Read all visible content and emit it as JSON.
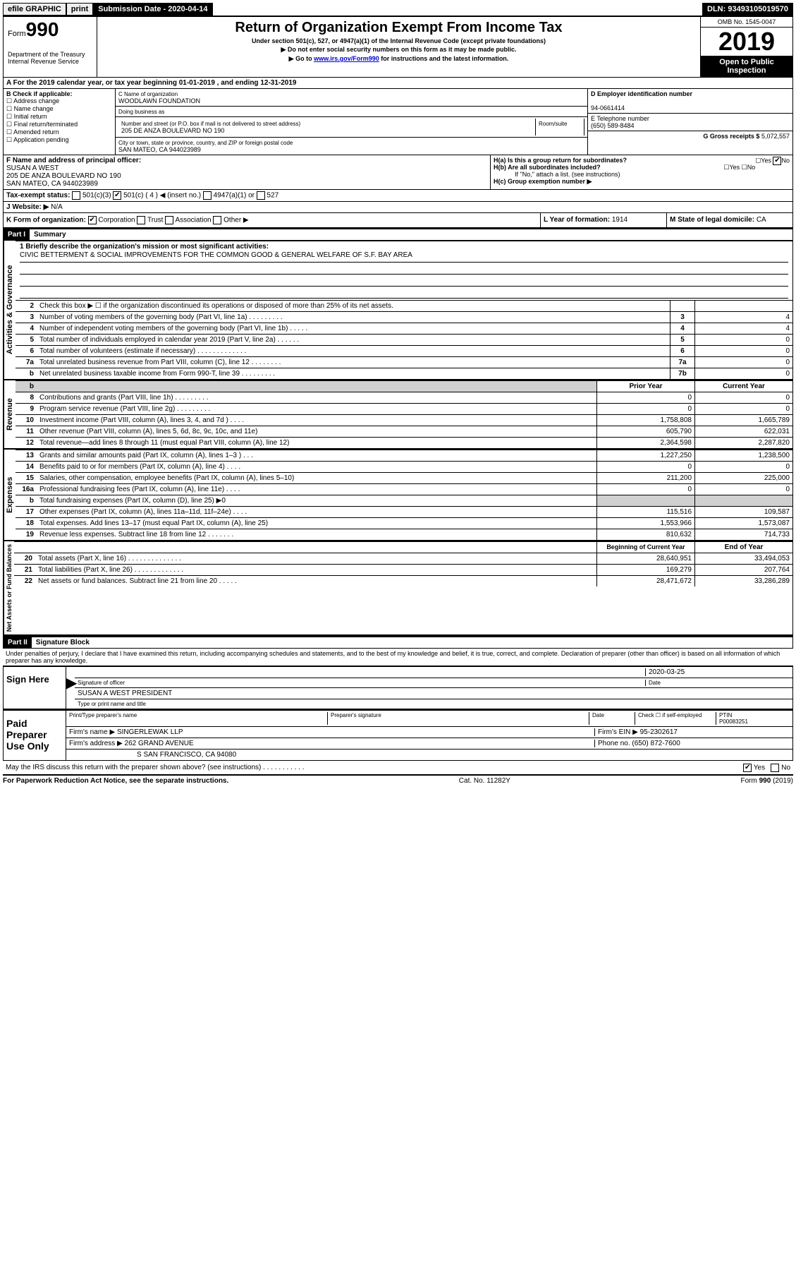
{
  "topbar": {
    "efile": "efile GRAPHIC",
    "print": "print",
    "submission_label": "Submission Date - 2020-04-14",
    "dln": "DLN: 93493105019570"
  },
  "header": {
    "form_prefix": "Form",
    "form_number": "990",
    "dept": "Department of the Treasury\nInternal Revenue Service",
    "title": "Return of Organization Exempt From Income Tax",
    "sub1": "Under section 501(c), 527, or 4947(a)(1) of the Internal Revenue Code (except private foundations)",
    "sub2": "▶ Do not enter social security numbers on this form as it may be made public.",
    "sub3_prefix": "▶ Go to ",
    "sub3_link": "www.irs.gov/Form990",
    "sub3_suffix": " for instructions and the latest information.",
    "omb": "OMB No. 1545-0047",
    "year": "2019",
    "open_public": "Open to Public Inspection"
  },
  "taxyear": "A For the 2019 calendar year, or tax year beginning 01-01-2019   , and ending 12-31-2019",
  "block_b": {
    "label": "B Check if applicable:",
    "items": [
      "Address change",
      "Name change",
      "Initial return",
      "Final return/terminated",
      "Amended return",
      "Application pending"
    ]
  },
  "block_c": {
    "name_label": "C Name of organization",
    "name": "WOODLAWN FOUNDATION",
    "dba_label": "Doing business as",
    "addr_label": "Number and street (or P.O. box if mail is not delivered to street address)",
    "room_label": "Room/suite",
    "addr": "205 DE ANZA BOULEVARD NO 190",
    "city_label": "City or town, state or province, country, and ZIP or foreign postal code",
    "city": "SAN MATEO, CA  944023989"
  },
  "block_d": {
    "label": "D Employer identification number",
    "value": "94-0661414"
  },
  "block_e": {
    "label": "E Telephone number",
    "value": "(650) 589-8484"
  },
  "block_g": {
    "label": "G Gross receipts $",
    "value": "5,072,557"
  },
  "block_f": {
    "label": "F Name and address of principal officer:",
    "name": "SUSAN A WEST",
    "addr1": "205 DE ANZA BOULEVARD NO 190",
    "addr2": "SAN MATEO, CA  944023989"
  },
  "block_h": {
    "a": "H(a)  Is this a group return for subordinates?",
    "b": "H(b)  Are all subordinates included?",
    "b_note": "If \"No,\" attach a list. (see instructions)",
    "c": "H(c)  Group exemption number ▶"
  },
  "taxexempt": {
    "label": "Tax-exempt status:",
    "opts": [
      "501(c)(3)",
      "501(c) ( 4 ) ◀ (insert no.)",
      "4947(a)(1) or",
      "527"
    ]
  },
  "website": {
    "label": "J   Website: ▶",
    "value": "N/A"
  },
  "block_k": "K Form of organization:",
  "k_opts": [
    "Corporation",
    "Trust",
    "Association",
    "Other ▶"
  ],
  "block_l": {
    "label": "L Year of formation:",
    "value": "1914"
  },
  "block_m": {
    "label": "M State of legal domicile:",
    "value": "CA"
  },
  "part1": {
    "header": "Part I",
    "title": "Summary"
  },
  "mission": {
    "label": "1  Briefly describe the organization's mission or most significant activities:",
    "text": "CIVIC BETTERMENT & SOCIAL IMPROVEMENTS FOR THE COMMON GOOD & GENERAL WELFARE OF S.F. BAY AREA"
  },
  "governance": [
    {
      "n": "2",
      "t": "Check this box ▶ ☐  if the organization discontinued its operations or disposed of more than 25% of its net assets.",
      "r": "",
      "v": ""
    },
    {
      "n": "3",
      "t": "Number of voting members of the governing body (Part VI, line 1a)   .    .    .    .    .    .    .    .    .",
      "r": "3",
      "v": "4"
    },
    {
      "n": "4",
      "t": "Number of independent voting members of the governing body (Part VI, line 1b)   .    .    .    .    .",
      "r": "4",
      "v": "4"
    },
    {
      "n": "5",
      "t": "Total number of individuals employed in calendar year 2019 (Part V, line 2a)   .    .    .    .    .    .",
      "r": "5",
      "v": "0"
    },
    {
      "n": "6",
      "t": "Total number of volunteers (estimate if necessary)   .    .    .    .    .    .    .    .    .    .    .    .    .",
      "r": "6",
      "v": "0"
    },
    {
      "n": "7a",
      "t": "Total unrelated business revenue from Part VIII, column (C), line 12   .    .    .    .    .    .    .    .",
      "r": "7a",
      "v": "0"
    },
    {
      "n": "b",
      "t": "Net unrelated business taxable income from Form 990-T, line 39   .    .    .    .    .    .    .    .    .",
      "r": "7b",
      "v": "0"
    }
  ],
  "rev_header": {
    "prior": "Prior Year",
    "current": "Current Year"
  },
  "revenue": [
    {
      "n": "8",
      "t": "Contributions and grants (Part VIII, line 1h)   .    .    .    .    .    .    .    .    .",
      "p": "0",
      "c": "0"
    },
    {
      "n": "9",
      "t": "Program service revenue (Part VIII, line 2g)   .    .    .    .    .    .    .    .    .",
      "p": "0",
      "c": "0"
    },
    {
      "n": "10",
      "t": "Investment income (Part VIII, column (A), lines 3, 4, and 7d )   .    .    .    .",
      "p": "1,758,808",
      "c": "1,665,789"
    },
    {
      "n": "11",
      "t": "Other revenue (Part VIII, column (A), lines 5, 6d, 8c, 9c, 10c, and 11e)",
      "p": "605,790",
      "c": "622,031"
    },
    {
      "n": "12",
      "t": "Total revenue—add lines 8 through 11 (must equal Part VIII, column (A), line 12)",
      "p": "2,364,598",
      "c": "2,287,820"
    }
  ],
  "expenses": [
    {
      "n": "13",
      "t": "Grants and similar amounts paid (Part IX, column (A), lines 1–3 )   .    .    .",
      "p": "1,227,250",
      "c": "1,238,500"
    },
    {
      "n": "14",
      "t": "Benefits paid to or for members (Part IX, column (A), line 4)   .    .    .    .",
      "p": "0",
      "c": "0"
    },
    {
      "n": "15",
      "t": "Salaries, other compensation, employee benefits (Part IX, column (A), lines 5–10)",
      "p": "211,200",
      "c": "225,000"
    },
    {
      "n": "16a",
      "t": "Professional fundraising fees (Part IX, column (A), line 11e)   .    .    .    .",
      "p": "0",
      "c": "0"
    },
    {
      "n": "b",
      "t": "Total fundraising expenses (Part IX, column (D), line 25) ▶0",
      "p": "",
      "c": "",
      "shaded": true
    },
    {
      "n": "17",
      "t": "Other expenses (Part IX, column (A), lines 11a–11d, 11f–24e)   .    .    .    .",
      "p": "115,516",
      "c": "109,587"
    },
    {
      "n": "18",
      "t": "Total expenses. Add lines 13–17 (must equal Part IX, column (A), line 25)",
      "p": "1,553,966",
      "c": "1,573,087"
    },
    {
      "n": "19",
      "t": "Revenue less expenses. Subtract line 18 from line 12   .    .    .    .    .    .    .",
      "p": "810,632",
      "c": "714,733"
    }
  ],
  "na_header": {
    "begin": "Beginning of Current Year",
    "end": "End of Year"
  },
  "netassets": [
    {
      "n": "20",
      "t": "Total assets (Part X, line 16)   .    .    .    .    .    .    .    .    .    .    .    .    .    .",
      "p": "28,640,951",
      "c": "33,494,053"
    },
    {
      "n": "21",
      "t": "Total liabilities (Part X, line 26)   .    .    .    .    .    .    .    .    .    .    .    .    .",
      "p": "169,279",
      "c": "207,764"
    },
    {
      "n": "22",
      "t": "Net assets or fund balances. Subtract line 21 from line 20   .    .    .    .    .",
      "p": "28,471,672",
      "c": "33,286,289"
    }
  ],
  "vlabels": {
    "gov": "Activities & Governance",
    "rev": "Revenue",
    "exp": "Expenses",
    "net": "Net Assets or Fund Balances"
  },
  "part2": {
    "header": "Part II",
    "title": "Signature Block"
  },
  "perjury": "Under penalties of perjury, I declare that I have examined this return, including accompanying schedules and statements, and to the best of my knowledge and belief, it is true, correct, and complete. Declaration of preparer (other than officer) is based on all information of which preparer has any knowledge.",
  "sign": {
    "label": "Sign Here",
    "date": "2020-03-25",
    "sig_label": "Signature of officer",
    "date_label": "Date",
    "name": "SUSAN A WEST PRESIDENT",
    "name_label": "Type or print name and title"
  },
  "paid": {
    "label": "Paid Preparer Use Only",
    "h1": "Print/Type preparer's name",
    "h2": "Preparer's signature",
    "h3": "Date",
    "h4": "Check ☐ if self-employed",
    "h5": "PTIN",
    "ptin": "P00083251",
    "firm_label": "Firm's name    ▶",
    "firm": "SINGERLEWAK LLP",
    "ein_label": "Firm's EIN ▶",
    "ein": "95-2302617",
    "addr_label": "Firm's address ▶",
    "addr1": "262 GRAND AVENUE",
    "addr2": "S SAN FRANCISCO, CA  94080",
    "phone_label": "Phone no.",
    "phone": "(650) 872-7600"
  },
  "discuss": "May the IRS discuss this return with the preparer shown above? (see instructions)    .    .    .    .    .    .    .    .    .    .    .",
  "footer": {
    "left": "For Paperwork Reduction Act Notice, see the separate instructions.",
    "mid": "Cat. No. 11282Y",
    "right": "Form 990 (2019)"
  }
}
